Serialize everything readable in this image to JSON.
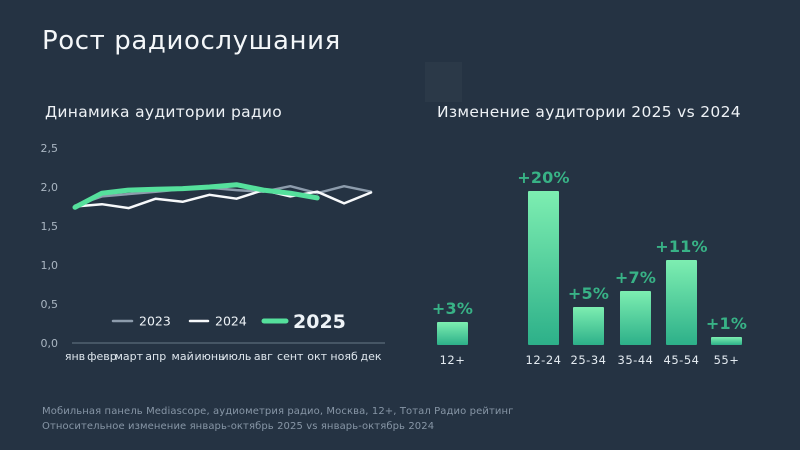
{
  "slide": {
    "title": "Рост радиослушания",
    "footer_line1": "Мобильная панель Mediascope, аудиометрия радио, Москва, 12+, Тотал Радио рейтинг",
    "footer_line2": "Относительное изменение январь-октябрь 2025 vs январь-октябрь 2024"
  },
  "colors": {
    "background": "#253343",
    "title_text": "#f4f7f9",
    "axis_text": "#aab6c2",
    "axis_line": "#9fb0bf",
    "line_2023": "#8d9cac",
    "line_2024": "#f7f9fb",
    "line_2025": "#55e09c",
    "legend_2025_text": "#53df9c",
    "bar_gradient_top": "#7deeb1",
    "bar_gradient_bottom": "#2db089",
    "bar_label": "#38b286",
    "footer_text": "#8796a6"
  },
  "chart_data": [
    {
      "type": "line",
      "title": "Динамика аудитории радио",
      "x": [
        "янв",
        "февр",
        "март",
        "апр",
        "май",
        "июнь",
        "июль",
        "авг",
        "сент",
        "окт",
        "нояб",
        "дек"
      ],
      "series": [
        {
          "name": "2023",
          "color_key": "line_2023",
          "stroke_width": 2.5,
          "values": [
            1.76,
            1.88,
            1.91,
            1.94,
            1.97,
            1.99,
            1.96,
            1.94,
            2.01,
            1.92,
            2.01,
            1.94
          ]
        },
        {
          "name": "2024",
          "color_key": "line_2024",
          "stroke_width": 2.5,
          "values": [
            1.75,
            1.78,
            1.73,
            1.85,
            1.81,
            1.9,
            1.85,
            1.96,
            1.88,
            1.94,
            1.79,
            1.93
          ]
        },
        {
          "name": "2025",
          "color_key": "line_2025",
          "stroke_width": 5,
          "values": [
            1.74,
            1.92,
            1.96,
            1.97,
            1.98,
            2.0,
            2.03,
            1.96,
            1.92,
            1.86
          ]
        }
      ],
      "ylim": [
        0,
        2.5
      ],
      "yticks": [
        {
          "label": "0,0",
          "value": 0.0
        },
        {
          "label": "0,5",
          "value": 0.5
        },
        {
          "label": "1,0",
          "value": 1.0
        },
        {
          "label": "1,5",
          "value": 1.5
        },
        {
          "label": "2,0",
          "value": 2.0
        },
        {
          "label": "2,5",
          "value": 2.5
        }
      ],
      "grid": false,
      "legend_position": "bottom"
    },
    {
      "type": "bar",
      "title": "Изменение аудитории 2025 vs 2024",
      "categories": [
        "12+",
        "12-24",
        "25-34",
        "35-44",
        "45-54",
        "55+"
      ],
      "values": [
        3,
        20,
        5,
        7,
        11,
        1
      ],
      "labels": [
        "+3%",
        "+20%",
        "+5%",
        "+7%",
        "+11%",
        "+1%"
      ],
      "ylim": [
        0,
        20
      ],
      "grid": false,
      "legend_position": "none"
    }
  ]
}
